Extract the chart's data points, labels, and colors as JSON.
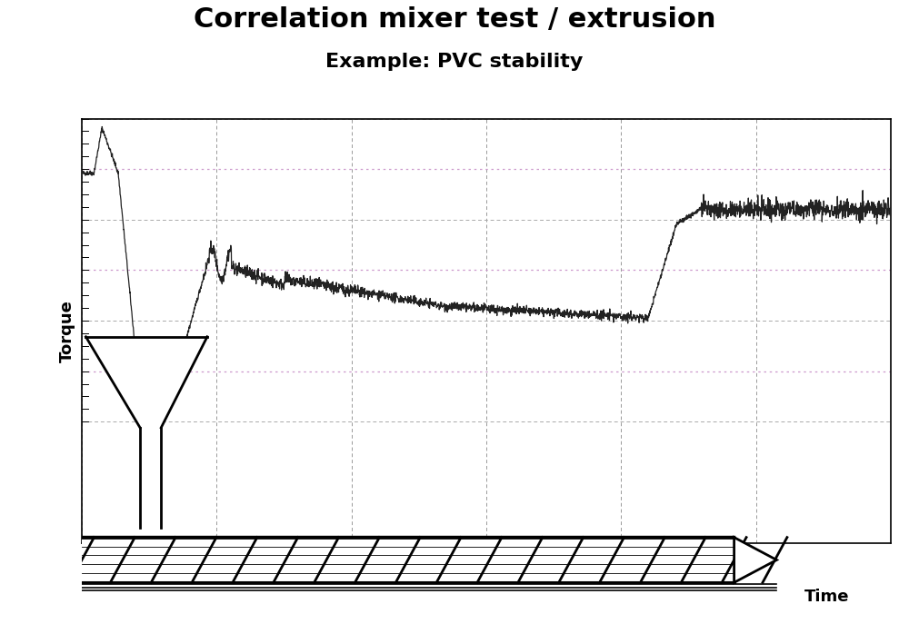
{
  "title": "Correlation mixer test / extrusion",
  "subtitle": "Example: PVC stability",
  "ylabel": "Torque",
  "xlabel": "Time",
  "title_fontsize": 22,
  "subtitle_fontsize": 16,
  "ylabel_fontsize": 13,
  "xlabel_fontsize": 13,
  "bg_color": "#ffffff",
  "plot_bg_color": "#f0f0f0",
  "grid_color_v": "#aaaaaa",
  "grid_color_h1": "#aaaaaa",
  "grid_color_h2": "#ccaacc",
  "line_color": "#222222",
  "xlim": [
    0,
    10
  ],
  "ylim": [
    0,
    10
  ],
  "n_grid_x": 6,
  "n_grid_y": 6
}
